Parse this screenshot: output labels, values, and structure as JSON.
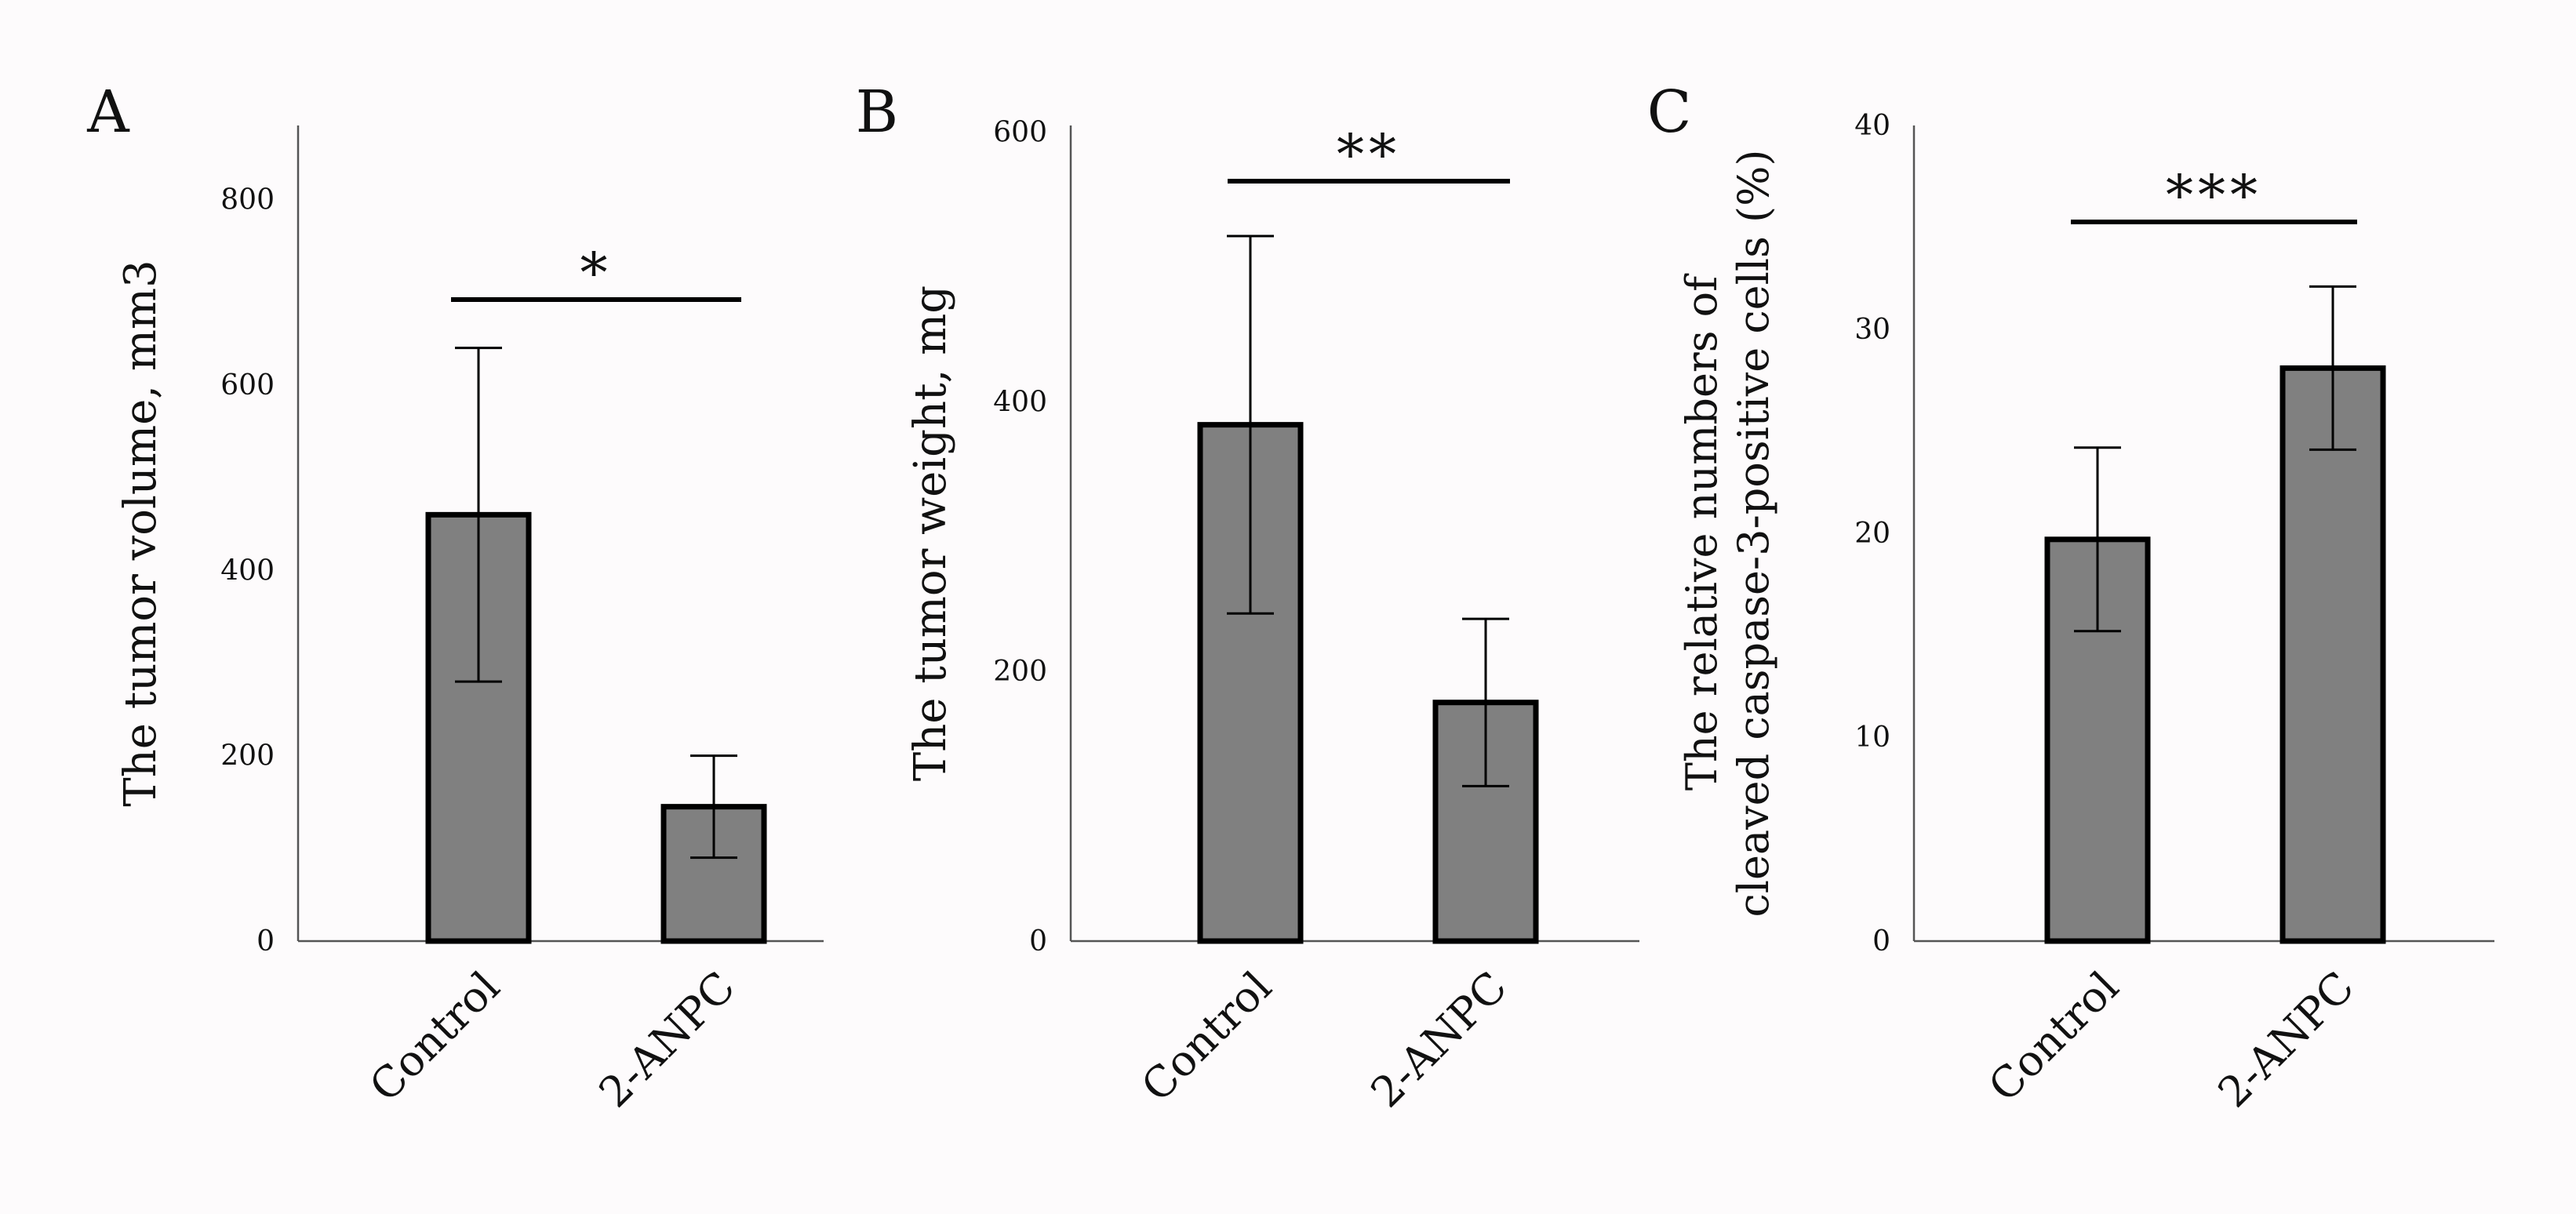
{
  "chart_data": [
    {
      "type": "bar",
      "panel_label": "A",
      "categories": [
        "Control",
        "2-ANPC"
      ],
      "values": [
        460,
        145
      ],
      "error": [
        180,
        55
      ],
      "ylabel": "The tumor volume, mm3",
      "ylim": [
        0,
        880
      ],
      "yticks": [
        0,
        200,
        400,
        600,
        800
      ],
      "significance": "*",
      "bar_color": "#808080",
      "grid": false
    },
    {
      "type": "bar",
      "panel_label": "B",
      "categories": [
        "Control",
        "2-ANPC"
      ],
      "values": [
        383,
        177
      ],
      "error": [
        140,
        62
      ],
      "ylabel": "The tumor weight, mg",
      "ylim": [
        0,
        605
      ],
      "yticks": [
        0,
        200,
        400,
        600
      ],
      "significance": "**",
      "bar_color": "#808080",
      "grid": false
    },
    {
      "type": "bar",
      "panel_label": "C",
      "categories": [
        "Control",
        "2-ANPC"
      ],
      "values": [
        19.7,
        28.1
      ],
      "error": [
        4.5,
        4
      ],
      "ylabel_lines": [
        "The relative numbers of",
        "cleaved caspase-3-positive cells (%)"
      ],
      "ylim": [
        0,
        40
      ],
      "yticks": [
        0,
        10,
        20,
        30,
        40
      ],
      "significance": "***",
      "bar_color": "#808080",
      "grid": false
    }
  ]
}
